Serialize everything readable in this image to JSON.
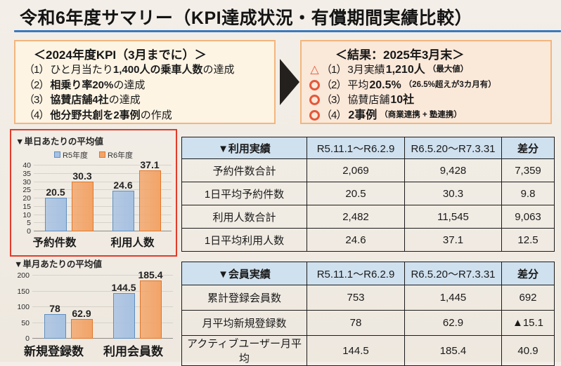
{
  "page": {
    "title": "令和6年度サマリー（KPI達成状況・有償期間実績比較）"
  },
  "colors": {
    "title_rule_blue": "#3a79bd",
    "box_border_orange": "#f3b57e",
    "kpi_box_bg": "#fdf4e4",
    "result_box_bg": "#fae8d9",
    "mark_orange_red": "#e4583a",
    "chart_frame_red": "#e23b2a",
    "table_header_blue": "#cfe0ee",
    "bar_blue_fill": "#a6c1e2",
    "bar_blue_border": "#5f8fc0",
    "bar_orange_fill": "#f2a468",
    "bar_orange_border": "#e0762a"
  },
  "kpi_box": {
    "header": "＜2024年度KPI（3月までに）＞",
    "items": [
      {
        "num": "（1）",
        "pre": "ひと月当たり",
        "bold": "1,400人の乗車人数",
        "post": "の達成"
      },
      {
        "num": "（2）",
        "pre": "",
        "bold": "相乗り率20%",
        "post": "の達成"
      },
      {
        "num": "（3）",
        "pre": "",
        "bold": "協賛店舗4社",
        "post": "の達成"
      },
      {
        "num": "（4）",
        "pre": "",
        "bold": "他分野共創を2事例",
        "post": "の作成"
      }
    ]
  },
  "result_box": {
    "header": "＜結果：2025年3月末＞",
    "items": [
      {
        "mark": "triangle",
        "num": "（1）",
        "pre": "3月実績 ",
        "bold": "1,210人",
        "note": "（最大値）"
      },
      {
        "mark": "circle",
        "num": "（2）",
        "pre": "平均",
        "bold": "20.5%",
        "note": "（26.5%超えが3カ月有）"
      },
      {
        "mark": "circle",
        "num": "（3）",
        "pre": "協賛店舗",
        "bold": "10社",
        "note": ""
      },
      {
        "mark": "circle",
        "num": "（4）",
        "pre": "",
        "bold": "2事例",
        "note": "（商業連携 + 塾連携）"
      }
    ]
  },
  "chart_data": [
    {
      "type": "bar",
      "title": "▼単日あたりの平均値",
      "categories": [
        "予約件数",
        "利用人数"
      ],
      "series": [
        {
          "name": "R5年度",
          "values": [
            20.5,
            24.6
          ],
          "fill": "#a6c1e2",
          "border": "#5f8fc0"
        },
        {
          "name": "R6年度",
          "values": [
            30.3,
            37.1
          ],
          "fill": "#f2a468",
          "border": "#e0762a"
        }
      ],
      "ylim": [
        0,
        40
      ],
      "yticks": [
        0,
        5,
        10,
        15,
        20,
        25,
        30,
        35,
        40
      ],
      "legend_position": "top",
      "grid": true
    },
    {
      "type": "bar",
      "title": "▼単月あたりの平均値",
      "categories": [
        "新規登録数",
        "利用会員数"
      ],
      "series": [
        {
          "name": "R5年度",
          "values": [
            78,
            144.5
          ],
          "fill": "#a6c1e2",
          "border": "#5f8fc0"
        },
        {
          "name": "R6年度",
          "values": [
            62.9,
            185.4
          ],
          "fill": "#f2a468",
          "border": "#e0762a"
        }
      ],
      "ylim": [
        0,
        200
      ],
      "yticks": [
        0,
        50,
        100,
        150,
        200
      ],
      "legend_position": "none",
      "grid": true
    }
  ],
  "tables": [
    {
      "headers": [
        "▼利用実績",
        "R5.11.1～R6.2.9",
        "R6.5.20～R7.3.31",
        "差分"
      ],
      "rows": [
        [
          "予約件数合計",
          "2,069",
          "9,428",
          "7,359"
        ],
        [
          "1日平均予約件数",
          "20.5",
          "30.3",
          "9.8"
        ],
        [
          "利用人数合計",
          "2,482",
          "11,545",
          "9,063"
        ],
        [
          "1日平均利用人数",
          "24.6",
          "37.1",
          "12.5"
        ]
      ]
    },
    {
      "headers": [
        "▼会員実績",
        "R5.11.1～R6.2.9",
        "R6.5.20～R7.3.31",
        "差分"
      ],
      "rows": [
        [
          "累計登録会員数",
          "753",
          "1,445",
          "692"
        ],
        [
          "月平均新規登録数",
          "78",
          "62.9",
          "▲15.1"
        ],
        [
          "アクティブユーザー月平均",
          "144.5",
          "185.4",
          "40.9"
        ]
      ]
    }
  ]
}
